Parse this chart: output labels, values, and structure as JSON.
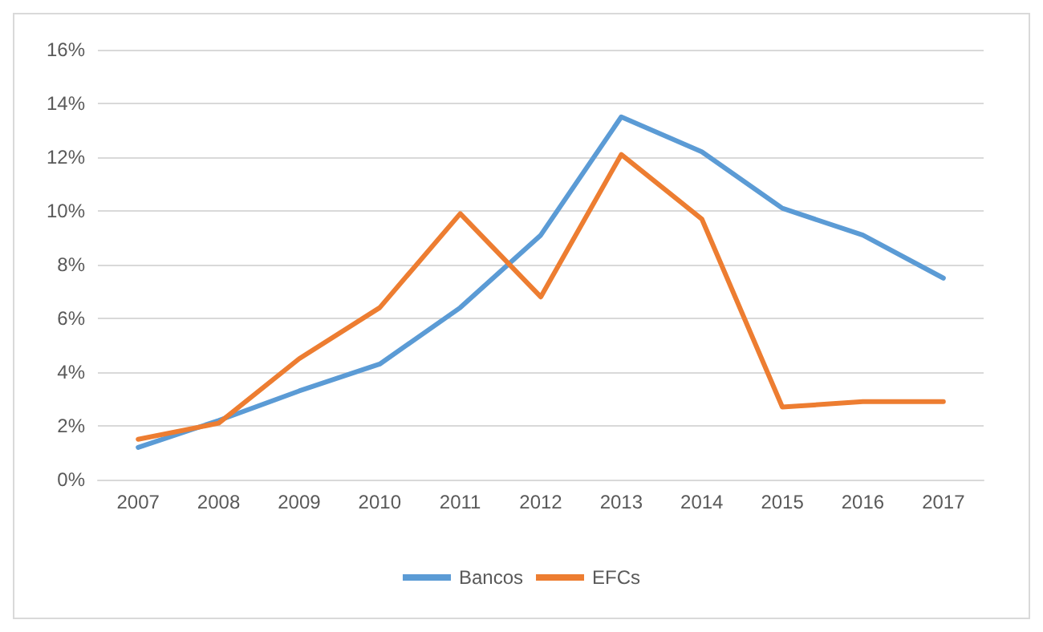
{
  "chart_data": {
    "type": "line",
    "categories": [
      "2007",
      "2008",
      "2009",
      "2010",
      "2011",
      "2012",
      "2013",
      "2014",
      "2015",
      "2016",
      "2017"
    ],
    "series": [
      {
        "name": "Bancos",
        "color": "#5b9bd5",
        "values": [
          1.2,
          2.2,
          3.3,
          4.3,
          6.4,
          9.1,
          13.5,
          12.2,
          10.1,
          9.1,
          7.5
        ]
      },
      {
        "name": "EFCs",
        "color": "#ed7d31",
        "values": [
          1.5,
          2.1,
          4.5,
          6.4,
          9.9,
          6.8,
          12.1,
          9.7,
          2.7,
          2.9,
          2.9
        ]
      }
    ],
    "ylim": [
      0,
      16
    ],
    "yticks": [
      {
        "value": 0,
        "label": "0%"
      },
      {
        "value": 2,
        "label": "2%"
      },
      {
        "value": 4,
        "label": "4%"
      },
      {
        "value": 6,
        "label": "6%"
      },
      {
        "value": 8,
        "label": "8%"
      },
      {
        "value": 10,
        "label": "10%"
      },
      {
        "value": 12,
        "label": "12%"
      },
      {
        "value": 14,
        "label": "14%"
      },
      {
        "value": 16,
        "label": "16%"
      }
    ],
    "grid": "y",
    "legend": "bottom",
    "marker": "none",
    "line_style": "solid"
  }
}
